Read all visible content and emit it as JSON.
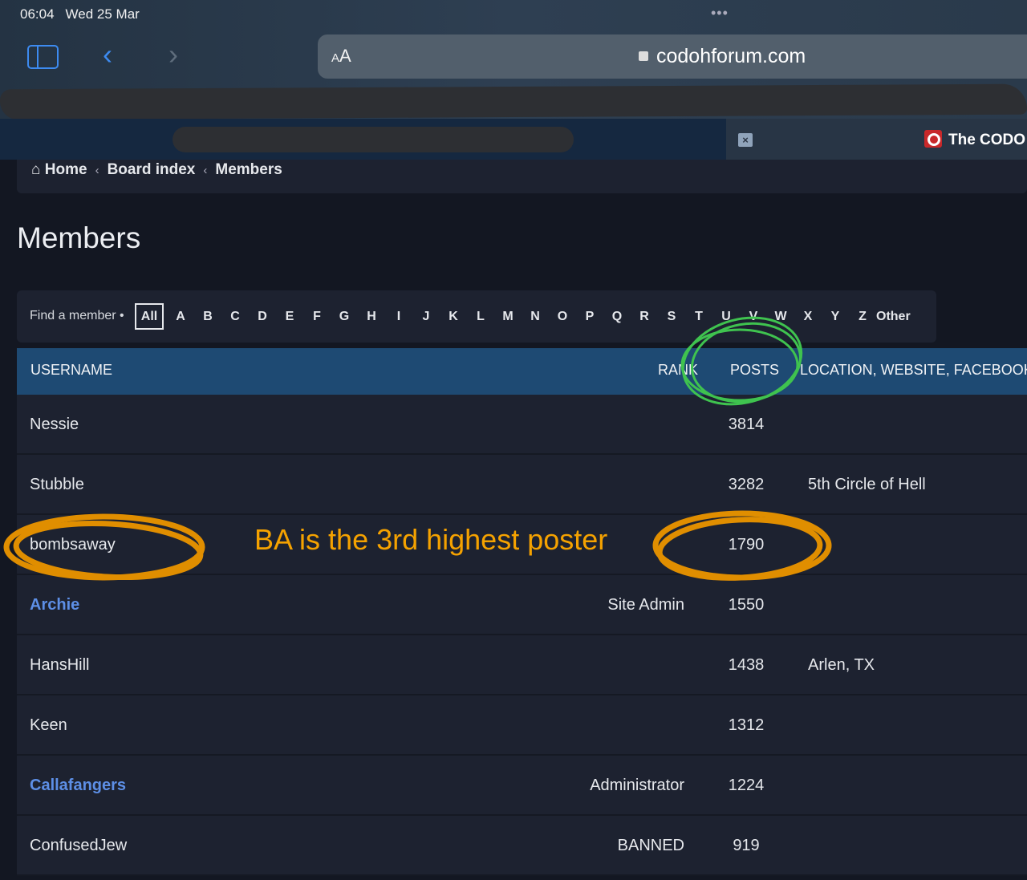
{
  "status_bar": {
    "time": "06:04",
    "date": "Wed 25 Mar",
    "dots": "•••"
  },
  "browser": {
    "aa_small": "A",
    "aa_large": "A",
    "url": "codohforum.com",
    "back": "‹",
    "forward": "›"
  },
  "banner": {
    "close": "×",
    "site_name": "The CODO"
  },
  "breadcrumb": {
    "items": [
      "Home",
      "Board index",
      "Members"
    ],
    "sep": "‹"
  },
  "page_title": "Members",
  "finder": {
    "label": "Find a member •",
    "letters": [
      "All",
      "A",
      "B",
      "C",
      "D",
      "E",
      "F",
      "G",
      "H",
      "I",
      "J",
      "K",
      "L",
      "M",
      "N",
      "O",
      "P",
      "Q",
      "R",
      "S",
      "T",
      "U",
      "V",
      "W",
      "X",
      "Y",
      "Z",
      "Other"
    ],
    "active": "All"
  },
  "table": {
    "headers": {
      "username": "USERNAME",
      "rank": "RANK",
      "posts": "POSTS",
      "location": "LOCATION, WEBSITE, FACEBOOK,"
    },
    "rows": [
      {
        "username": "Nessie",
        "rank": "",
        "posts": "3814",
        "location": ""
      },
      {
        "username": "Stubble",
        "rank": "",
        "posts": "3282",
        "location": "5th Circle of Hell"
      },
      {
        "username": "bombsaway",
        "rank": "",
        "posts": "1790",
        "location": ""
      },
      {
        "username": "Archie",
        "rank": "Site Admin",
        "posts": "1550",
        "location": ""
      },
      {
        "username": "HansHill",
        "rank": "",
        "posts": "1438",
        "location": "Arlen, TX"
      },
      {
        "username": "Keen",
        "rank": "",
        "posts": "1312",
        "location": ""
      },
      {
        "username": "Callafangers",
        "rank": "Administrator",
        "posts": "1224",
        "location": ""
      },
      {
        "username": "ConfusedJew",
        "rank": "BANNED",
        "posts": "919",
        "location": ""
      }
    ]
  },
  "annotation": {
    "text": "BA is the 3rd highest poster",
    "color": "#f5a200",
    "circle_color": "#3fc34f"
  },
  "colors": {
    "header": "#1e4a73",
    "admin_link": "#5d8fe6",
    "background": "#131722"
  }
}
